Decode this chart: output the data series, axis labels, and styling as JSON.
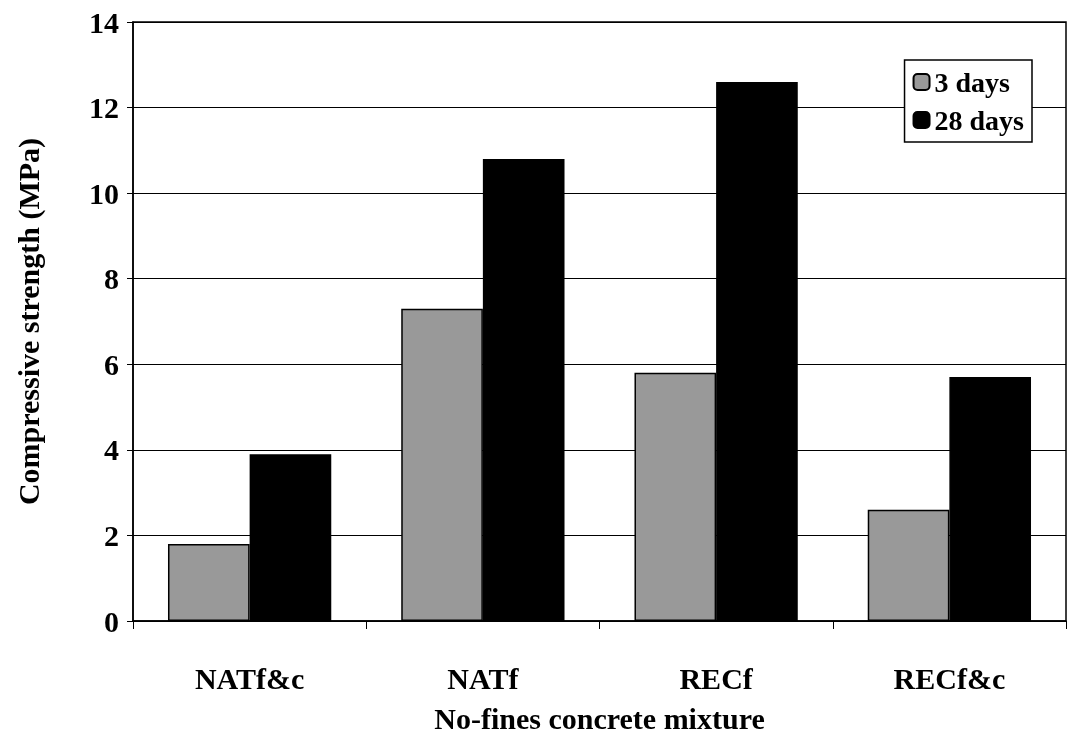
{
  "chart_data": {
    "type": "bar",
    "xlabel": "No-fines concrete mixture",
    "ylabel": "Compressive strength (MPa)",
    "categories": [
      "NATf&c",
      "NATf",
      "RECf",
      "RECf&c"
    ],
    "series": [
      {
        "name": "3 days",
        "color": "#999999",
        "values": [
          1.8,
          7.3,
          5.8,
          2.6
        ]
      },
      {
        "name": "28 days",
        "color": "#000000",
        "values": [
          3.9,
          10.8,
          12.6,
          5.7
        ]
      }
    ],
    "ylim": [
      0,
      14
    ],
    "yticks": [
      0,
      2,
      4,
      6,
      8,
      10,
      12,
      14
    ],
    "grid": "y",
    "legend": "top right"
  }
}
